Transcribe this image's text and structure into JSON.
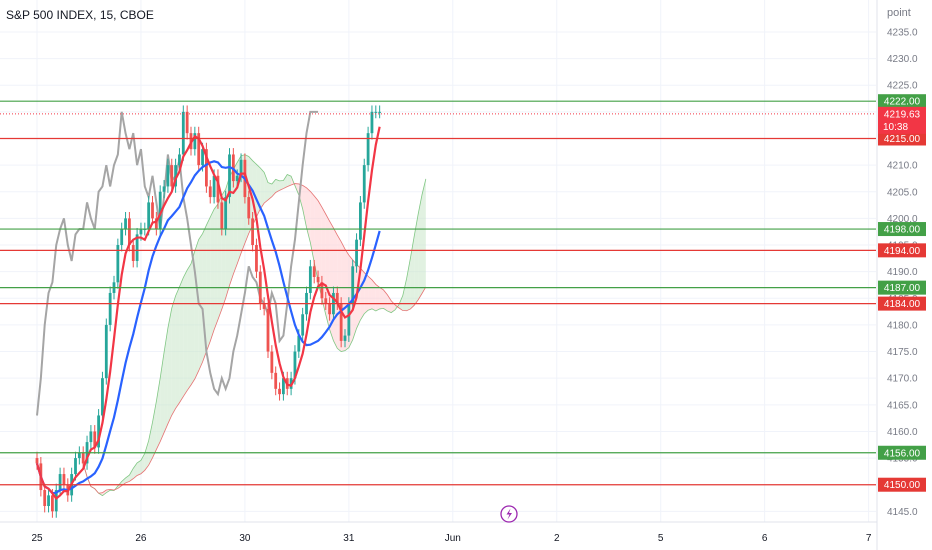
{
  "header": {
    "title": "S&P 500 INDEX, 15, CBOE",
    "unit": "point"
  },
  "colors": {
    "up": "#26a69a",
    "down": "#ef5350",
    "green_level": "#43a047",
    "red_level": "#e53935",
    "price_line": "#f23645",
    "tenkan": "#f23645",
    "kijun": "#2962ff",
    "chikou": "#a5a5a5",
    "cloud_bull": "#c8e6c9",
    "cloud_bear": "#ffcdd2"
  },
  "chart_data": {
    "type": "candlestick",
    "y_axis_ticks": [
      4145,
      4150,
      4155,
      4160,
      4165,
      4170,
      4175,
      4180,
      4185,
      4190,
      4195,
      4200,
      4205,
      4210,
      4215,
      4220,
      4225,
      4230,
      4235
    ],
    "ylim": [
      4143,
      4241
    ],
    "x_axis_labels": [
      {
        "label": "25",
        "index": 0
      },
      {
        "label": "26",
        "index": 27
      },
      {
        "label": "30",
        "index": 54
      },
      {
        "label": "31",
        "index": 81
      },
      {
        "label": "Jun",
        "index": 108
      },
      {
        "label": "2",
        "index": 135
      },
      {
        "label": "5",
        "index": 162
      },
      {
        "label": "6",
        "index": 189
      },
      {
        "label": "7",
        "index": 216
      }
    ],
    "horizontal_levels": [
      {
        "value": 4222.0,
        "label": "4222.00",
        "color": "green"
      },
      {
        "value": 4215.0,
        "label": "4215.00",
        "color": "red"
      },
      {
        "value": 4198.0,
        "label": "4198.00",
        "color": "green"
      },
      {
        "value": 4194.0,
        "label": "4194.00",
        "color": "red"
      },
      {
        "value": 4187.0,
        "label": "4187.00",
        "color": "green"
      },
      {
        "value": 4184.0,
        "label": "4184.00",
        "color": "red"
      },
      {
        "value": 4156.0,
        "label": "4156.00",
        "color": "green"
      },
      {
        "value": 4150.0,
        "label": "4150.00",
        "color": "red"
      }
    ],
    "last_price": {
      "value": 4219.63,
      "label": "4219.63",
      "countdown": "10:38"
    },
    "closes": [
      4154,
      4149,
      4146,
      4148,
      4145,
      4149,
      4152,
      4150,
      4148,
      4152,
      4155,
      4156,
      4154,
      4158,
      4160,
      4157,
      4163,
      4170,
      4180,
      4186,
      4188,
      4195,
      4198,
      4200,
      4195,
      4192,
      4197,
      4198,
      4198,
      4203,
      4200,
      4198,
      4205,
      4206,
      4210,
      4206,
      4210,
      4212,
      4220,
      4216,
      4213,
      4216,
      4210,
      4213,
      4206,
      4204,
      4208,
      4203,
      4198,
      4204,
      4212,
      4207,
      4208,
      4211,
      4204,
      4200,
      4195,
      4190,
      4184,
      4183,
      4175,
      4171,
      4168,
      4167,
      4170,
      4168,
      4170,
      4175,
      4178,
      4182,
      4186,
      4191,
      4189,
      4188,
      4185,
      4184,
      4182,
      4186,
      4184,
      4177,
      4178,
      4184,
      4191,
      4196,
      4203,
      4210,
      4216,
      4220,
      4220,
      4220
    ]
  }
}
